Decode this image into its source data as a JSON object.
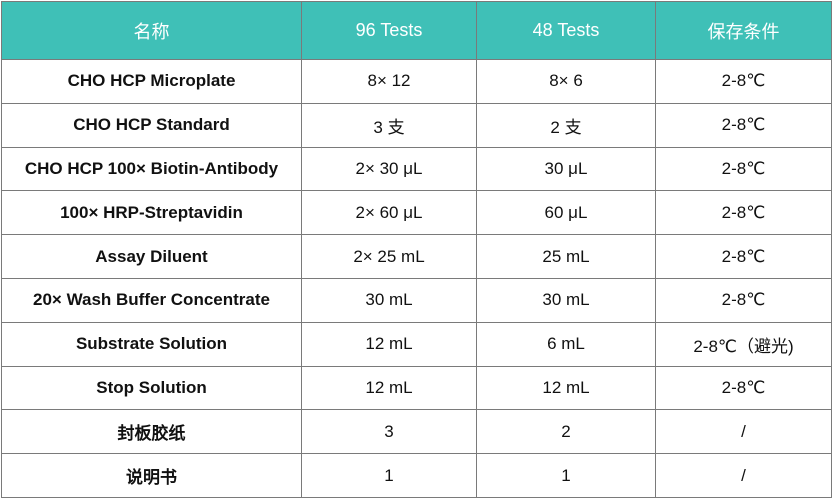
{
  "table": {
    "headers": [
      "名称",
      "96 Tests",
      "48 Tests",
      "保存条件"
    ],
    "rows": [
      [
        "CHO HCP Microplate",
        "8× 12",
        "8× 6",
        "2-8℃"
      ],
      [
        "CHO HCP Standard",
        "3 支",
        "2 支",
        "2-8℃"
      ],
      [
        "CHO HCP 100× Biotin-Antibody",
        "2× 30 μL",
        "30 μL",
        "2-8℃"
      ],
      [
        "100× HRP-Streptavidin",
        "2× 60 μL",
        "60 μL",
        "2-8℃"
      ],
      [
        "Assay Diluent",
        "2× 25 mL",
        "25 mL",
        "2-8℃"
      ],
      [
        "20× Wash Buffer Concentrate",
        "30 mL",
        "30 mL",
        "2-8℃"
      ],
      [
        "Substrate Solution",
        "12 mL",
        "6 mL",
        "2-8℃（避光)"
      ],
      [
        "Stop Solution",
        "12 mL",
        "12 mL",
        "2-8℃"
      ],
      [
        "封板胶纸",
        "3",
        "2",
        "/"
      ],
      [
        "说明书",
        "1",
        "1",
        "/"
      ]
    ]
  },
  "colors": {
    "header_bg": "#3fc0b7",
    "header_text": "#ffffff",
    "border": "#7a7a7a"
  }
}
